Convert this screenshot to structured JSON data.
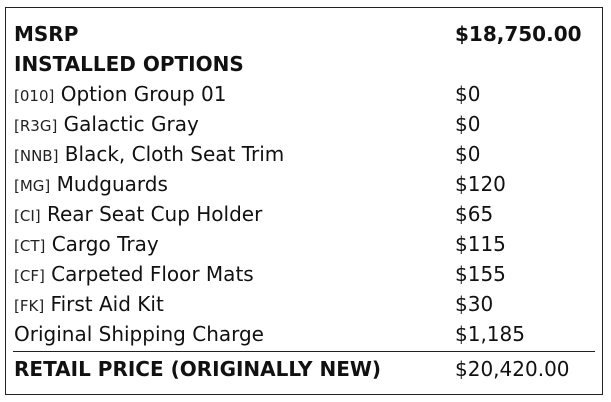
{
  "msrp": {
    "label": "MSRP",
    "price": "$18,750.00"
  },
  "installed_options_heading": "INSTALLED OPTIONS",
  "options": [
    {
      "code": "[010]",
      "name": "Option Group 01",
      "price": "$0"
    },
    {
      "code": "[R3G]",
      "name": "Galactic Gray",
      "price": "$0"
    },
    {
      "code": "[NNB]",
      "name": "Black, Cloth Seat Trim",
      "price": "$0"
    },
    {
      "code": "[MG]",
      "name": "Mudguards",
      "price": "$120"
    },
    {
      "code": "[CI]",
      "name": "Rear Seat Cup Holder",
      "price": "$65"
    },
    {
      "code": "[CT]",
      "name": "Cargo Tray",
      "price": "$115"
    },
    {
      "code": "[CF]",
      "name": "Carpeted Floor Mats",
      "price": "$155"
    },
    {
      "code": "[FK]",
      "name": "First Aid Kit",
      "price": "$30"
    }
  ],
  "shipping": {
    "label": "Original Shipping Charge",
    "price": "$1,185"
  },
  "retail": {
    "label": "RETAIL PRICE (ORIGINALLY NEW)",
    "price": "$20,420.00"
  }
}
